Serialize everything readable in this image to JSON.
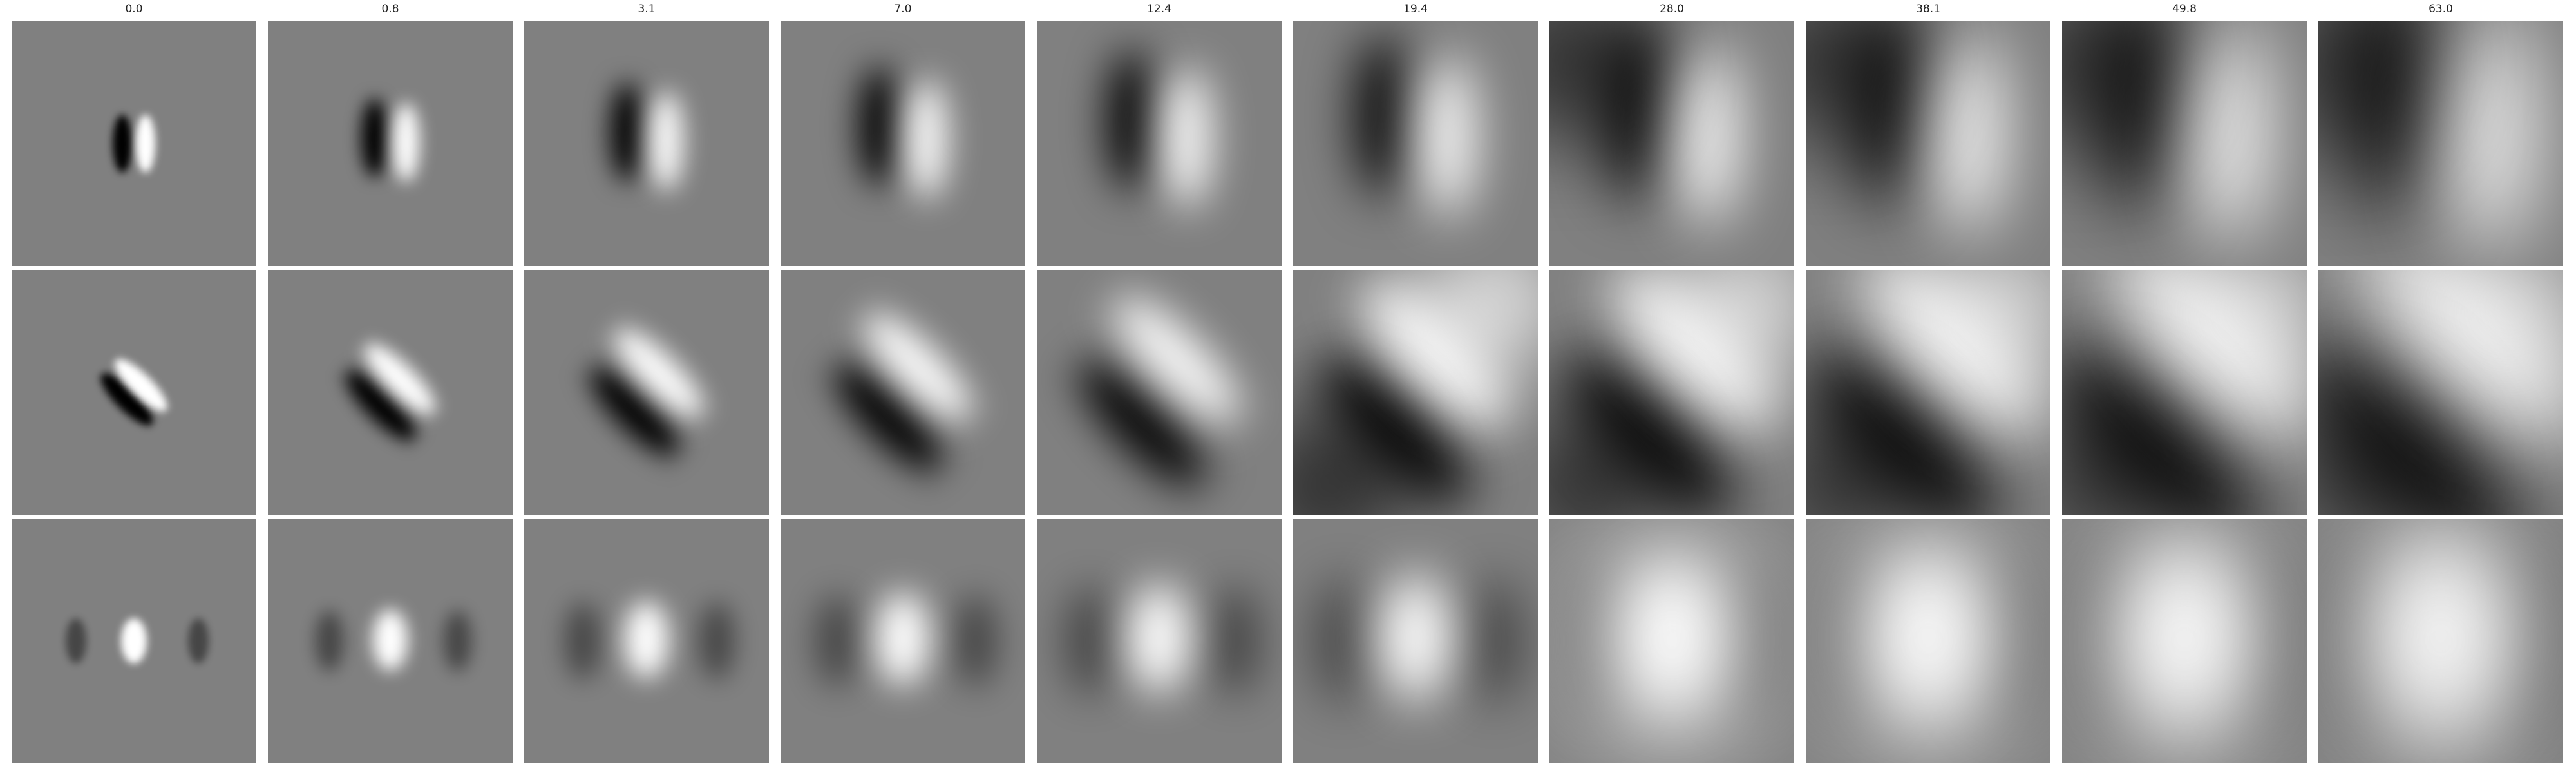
{
  "column_titles": [
    "0.0",
    "0.8",
    "3.1",
    "7.0",
    "12.4",
    "19.4",
    "28.0",
    "38.1",
    "49.8",
    "63.0"
  ],
  "rows": [
    {
      "name": "row-1",
      "pattern": "vertical-dipole-dark-left-light-right"
    },
    {
      "name": "row-2",
      "pattern": "diagonal-dipole-dark-lower-left-light-upper-right"
    },
    {
      "name": "row-3",
      "pattern": "central-bright-blob-dark-flanks"
    }
  ],
  "colors": {
    "background_gray": "#808080",
    "dark": "#000000",
    "light": "#ffffff",
    "separator": "#ffffff"
  }
}
